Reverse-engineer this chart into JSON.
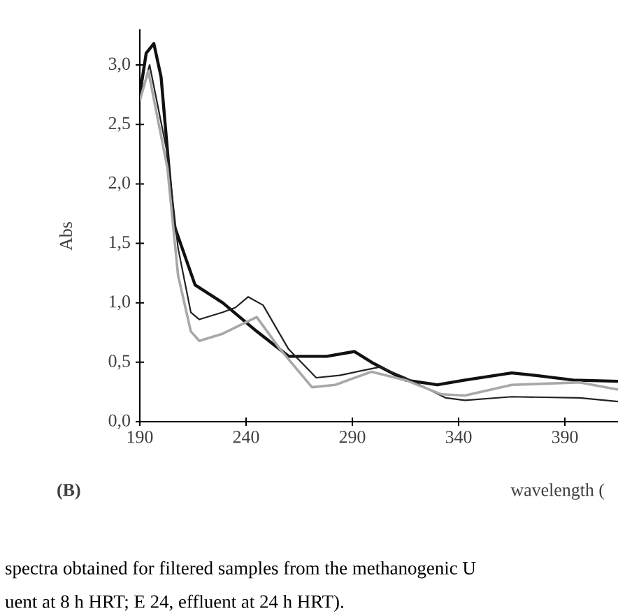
{
  "chart_data": {
    "type": "line",
    "xlabel": "wavelength (",
    "ylabel": "Abs",
    "xlim": [
      190,
      415
    ],
    "ylim": [
      0,
      3.3
    ],
    "xticks": [
      190,
      240,
      290,
      340,
      390
    ],
    "yticks": [
      {
        "value": 0,
        "label": "0,0"
      },
      {
        "value": 0.5,
        "label": "0,5"
      },
      {
        "value": 1,
        "label": "1,0"
      },
      {
        "value": 1.5,
        "label": "1,5"
      },
      {
        "value": 2,
        "label": "2,0"
      },
      {
        "value": 2.5,
        "label": "2,5"
      },
      {
        "value": 3,
        "label": "3,0"
      }
    ],
    "grid": false,
    "marker": "none",
    "line_style": "solid",
    "annotations": [
      "(B)",
      "spectra obtained for filtered samples from the methanogenic U",
      "uent at 8 h HRT; E 24, effluent at 24 h HRT)."
    ],
    "series": [
      {
        "color": "#111111",
        "x": [
          190,
          193,
          196.6,
          200,
          206,
          216,
          229,
          245,
          260,
          278,
          291,
          300,
          315,
          330,
          343,
          365,
          376,
          394,
          415
        ],
        "values": [
          2.75,
          3.1,
          3.18,
          2.9,
          1.66,
          1.15,
          1.0,
          0.76,
          0.55,
          0.55,
          0.59,
          0.49,
          0.35,
          0.31,
          0.35,
          0.41,
          0.39,
          0.35,
          0.34
        ]
      },
      {
        "color": "#222222",
        "x": [
          190,
          194.6,
          203,
          208,
          214,
          218,
          229,
          235,
          241,
          248,
          260,
          273,
          284,
          303,
          315,
          334,
          343,
          365,
          397,
          415
        ],
        "values": [
          2.7,
          3.0,
          2.25,
          1.46,
          0.92,
          0.86,
          0.92,
          0.96,
          1.05,
          0.98,
          0.61,
          0.37,
          0.39,
          0.46,
          0.37,
          0.2,
          0.18,
          0.21,
          0.2,
          0.17
        ]
      },
      {
        "color": "#a8a8a8",
        "x": [
          190,
          194,
          203,
          208,
          214,
          218,
          229,
          245,
          256,
          271,
          282,
          299,
          315,
          332,
          343,
          365,
          397,
          415
        ],
        "values": [
          2.7,
          2.95,
          2.13,
          1.23,
          0.76,
          0.68,
          0.74,
          0.88,
          0.61,
          0.29,
          0.31,
          0.42,
          0.35,
          0.23,
          0.22,
          0.31,
          0.33,
          0.27
        ]
      }
    ]
  }
}
